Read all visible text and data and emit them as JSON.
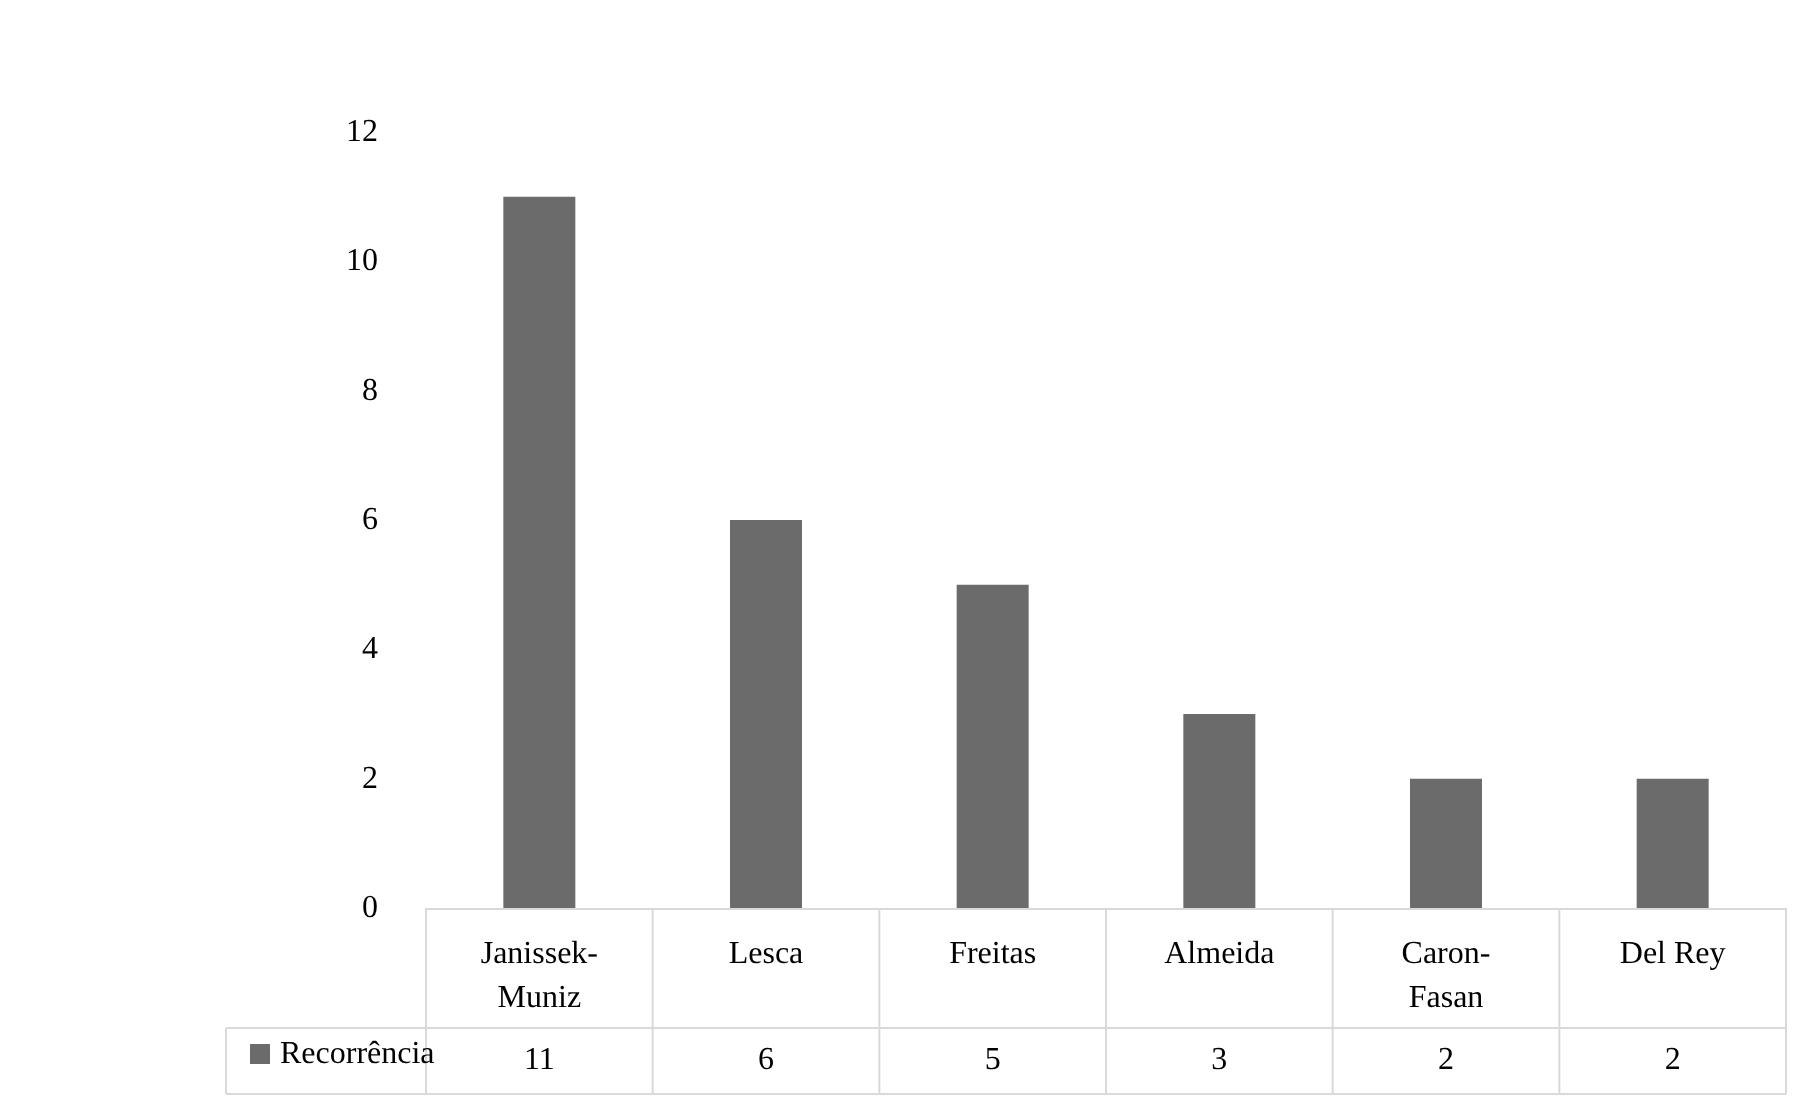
{
  "chart_data": {
    "type": "bar",
    "categories": [
      "Janissek-Muniz",
      "Lesca",
      "Freitas",
      "Almeida",
      "Caron-Fasan",
      "Del Rey"
    ],
    "series": [
      {
        "name": "Recorrência",
        "color": "#6b6b6b",
        "values": [
          11,
          6,
          5,
          3,
          2,
          2
        ]
      }
    ],
    "ylim": [
      0,
      12
    ],
    "yticks": [
      0,
      2,
      4,
      6,
      8,
      10,
      12
    ],
    "grid": false,
    "legend": "bottom left",
    "data_labels": true
  }
}
